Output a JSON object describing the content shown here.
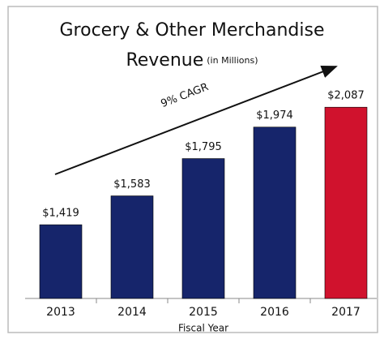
{
  "chart_data": {
    "type": "bar",
    "title": "Grocery & Other Merchandise",
    "subtitle": "Revenue",
    "subtitle_note": "(in Millions)",
    "x_label": "Fiscal Year",
    "annotation": "9% CAGR",
    "categories": [
      "2013",
      "2014",
      "2015",
      "2016",
      "2017"
    ],
    "values": [
      1419,
      1583,
      1795,
      1974,
      2087
    ],
    "value_labels": [
      "$1,419",
      "$1,583",
      "$1,795",
      "$1,974",
      "$2,087"
    ],
    "colors": [
      "#16256b",
      "#16256b",
      "#16256b",
      "#16256b",
      "#d0122d"
    ],
    "ylim": [
      1000,
      2300
    ],
    "yticks": [],
    "grid": false
  }
}
